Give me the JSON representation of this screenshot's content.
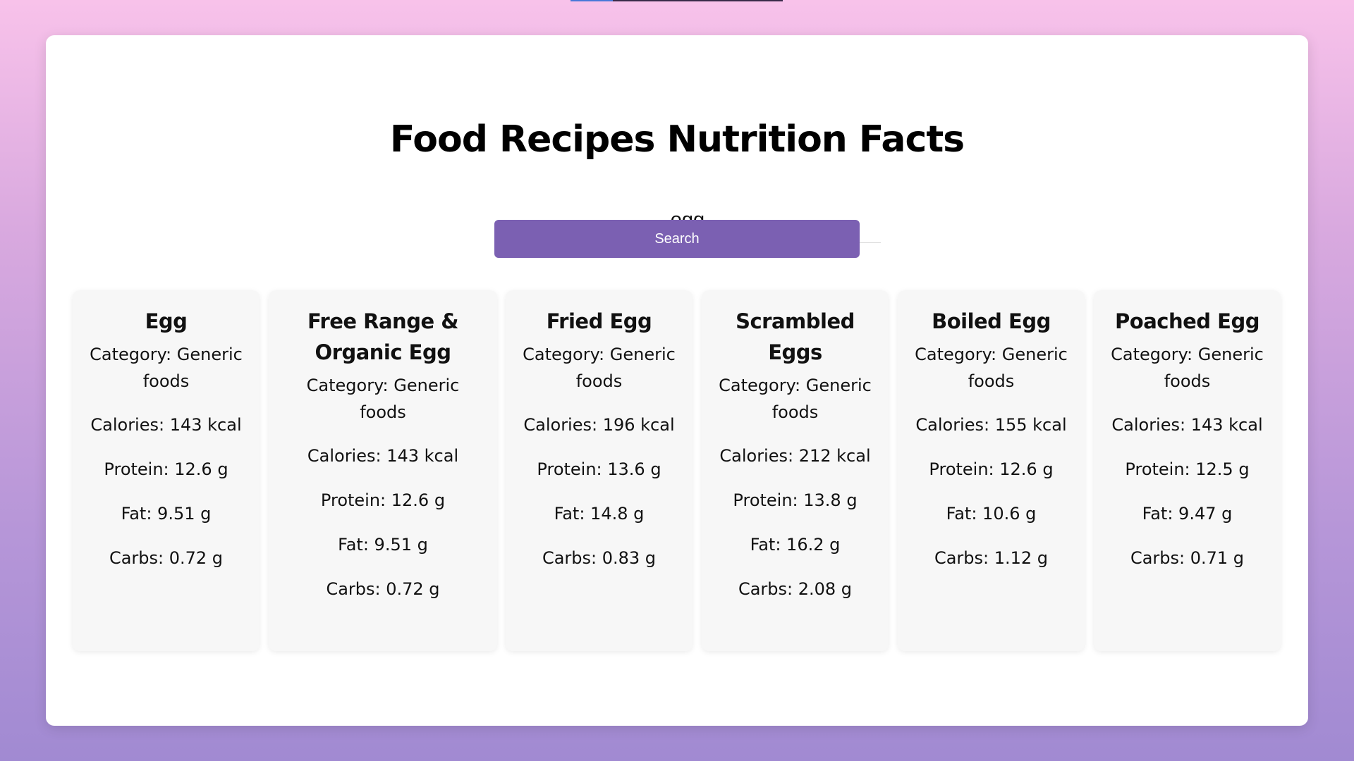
{
  "page": {
    "title": "Food Recipes Nutrition Facts"
  },
  "search": {
    "value": "egg",
    "button_label": "Search"
  },
  "results": [
    {
      "name": "Egg",
      "category": "Category: Generic foods",
      "calories": "Calories: 143 kcal",
      "protein": "Protein: 12.6 g",
      "fat": "Fat: 9.51 g",
      "carbs": "Carbs: 0.72 g"
    },
    {
      "name": "Free Range & Organic Egg",
      "category": "Category: Generic foods",
      "calories": "Calories: 143 kcal",
      "protein": "Protein: 12.6 g",
      "fat": "Fat: 9.51 g",
      "carbs": "Carbs: 0.72 g"
    },
    {
      "name": "Fried Egg",
      "category": "Category: Generic foods",
      "calories": "Calories: 196 kcal",
      "protein": "Protein: 13.6 g",
      "fat": "Fat: 14.8 g",
      "carbs": "Carbs: 0.83 g"
    },
    {
      "name": "Scrambled Eggs",
      "category": "Category: Generic foods",
      "calories": "Calories: 212 kcal",
      "protein": "Protein: 13.8 g",
      "fat": "Fat: 16.2 g",
      "carbs": "Carbs: 2.08 g"
    },
    {
      "name": "Boiled Egg",
      "category": "Category: Generic foods",
      "calories": "Calories: 155 kcal",
      "protein": "Protein: 12.6 g",
      "fat": "Fat: 10.6 g",
      "carbs": "Carbs: 1.12 g"
    },
    {
      "name": "Poached Egg",
      "category": "Category: Generic foods",
      "calories": "Calories: 143 kcal",
      "protein": "Protein: 12.5 g",
      "fat": "Fat: 9.47 g",
      "carbs": "Carbs: 0.71 g"
    }
  ],
  "colors": {
    "accent": "#7b60b2",
    "card_background": "#f7f7f7",
    "page_gradient_top": "#f8c2ea",
    "page_gradient_bottom": "#a18ad2"
  },
  "loading_bar": {
    "progress": 0.2
  }
}
